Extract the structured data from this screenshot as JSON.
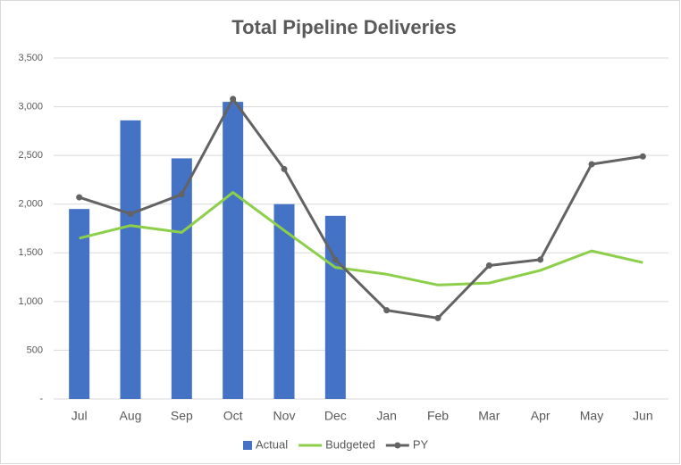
{
  "chart_data": {
    "type": "combo",
    "title": "Total Pipeline Deliveries",
    "categories": [
      "Jul",
      "Aug",
      "Sep",
      "Oct",
      "Nov",
      "Dec",
      "Jan",
      "Feb",
      "Mar",
      "Apr",
      "May",
      "Jun"
    ],
    "series": [
      {
        "name": "Actual",
        "type": "bar",
        "color": "#4472c4",
        "values": [
          1950,
          2860,
          2470,
          3050,
          2000,
          1880,
          null,
          null,
          null,
          null,
          null,
          null
        ]
      },
      {
        "name": "Budgeted",
        "type": "line",
        "color": "#8dcf4b",
        "values": [
          1650,
          1780,
          1710,
          2120,
          1730,
          1350,
          1280,
          1170,
          1190,
          1320,
          1520,
          1400
        ]
      },
      {
        "name": "PY",
        "type": "line",
        "markers": true,
        "color": "#636363",
        "values": [
          2070,
          1900,
          2100,
          3080,
          2360,
          1430,
          910,
          830,
          1370,
          1430,
          2410,
          2490
        ]
      }
    ],
    "ylim": [
      0,
      3500
    ],
    "yticks": [
      {
        "value": 0,
        "label": "-"
      },
      500,
      {
        "value": 1000,
        "label": "1,000"
      },
      {
        "value": 1500,
        "label": "1,500"
      },
      {
        "value": 2000,
        "label": "2,000"
      },
      {
        "value": 2500,
        "label": "2,500"
      },
      {
        "value": 3000,
        "label": "3,000"
      },
      {
        "value": 3500,
        "label": "3,500"
      }
    ],
    "grid": true,
    "legend": "bottom"
  }
}
